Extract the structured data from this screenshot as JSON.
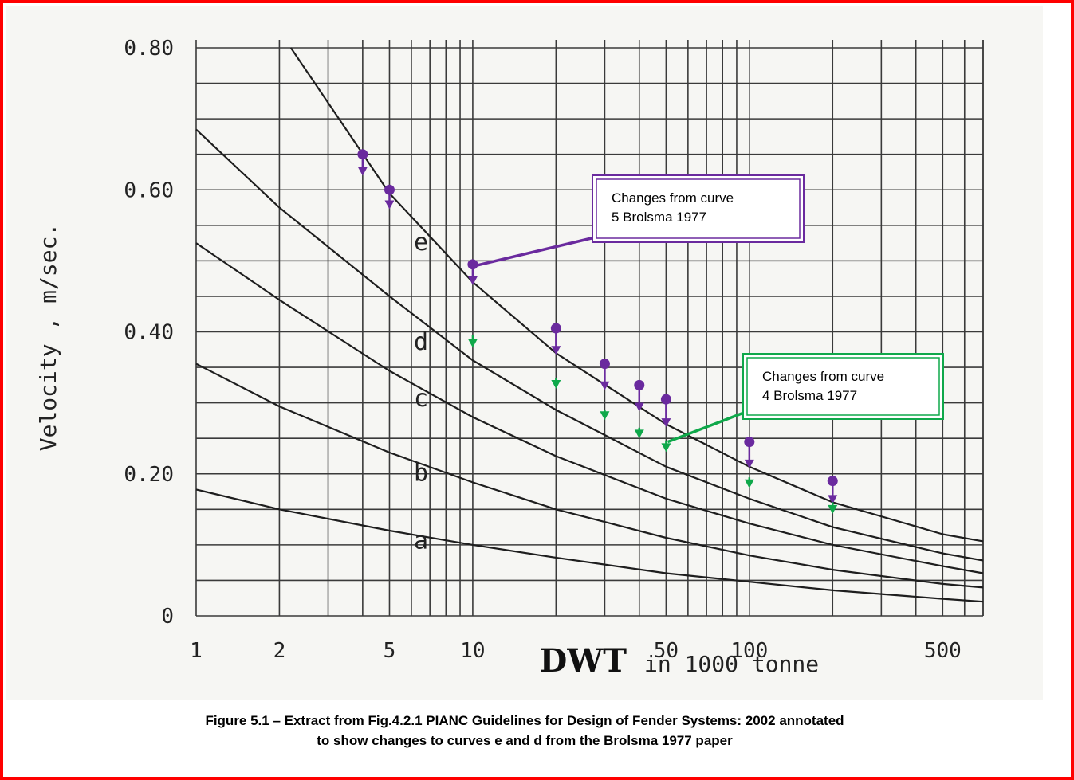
{
  "chart_data": {
    "type": "line",
    "x_scale": "log",
    "xlim": [
      1,
      700
    ],
    "ylim": [
      0,
      0.8
    ],
    "grid": true,
    "xticks": [
      "1",
      "2",
      "5",
      "10",
      "50",
      "100",
      "500"
    ],
    "yticks": [
      "0",
      "0.20",
      "0.40",
      "0.60",
      "0.80"
    ],
    "ylabel": "Velocity , m/sec.",
    "xlabel_bold": "DWT",
    "xlabel_rest": "in 1000 tonne",
    "series": [
      {
        "name": "a",
        "points": [
          [
            1,
            0.178
          ],
          [
            2,
            0.15
          ],
          [
            5,
            0.12
          ],
          [
            10,
            0.1
          ],
          [
            20,
            0.082
          ],
          [
            50,
            0.06
          ],
          [
            100,
            0.048
          ],
          [
            200,
            0.036
          ],
          [
            500,
            0.024
          ],
          [
            700,
            0.02
          ]
        ]
      },
      {
        "name": "b",
        "points": [
          [
            1,
            0.355
          ],
          [
            2,
            0.295
          ],
          [
            5,
            0.23
          ],
          [
            10,
            0.188
          ],
          [
            20,
            0.15
          ],
          [
            50,
            0.11
          ],
          [
            100,
            0.085
          ],
          [
            200,
            0.065
          ],
          [
            500,
            0.045
          ],
          [
            700,
            0.04
          ]
        ]
      },
      {
        "name": "c",
        "points": [
          [
            1,
            0.525
          ],
          [
            2,
            0.445
          ],
          [
            5,
            0.345
          ],
          [
            10,
            0.28
          ],
          [
            20,
            0.225
          ],
          [
            50,
            0.165
          ],
          [
            100,
            0.13
          ],
          [
            200,
            0.1
          ],
          [
            500,
            0.07
          ],
          [
            700,
            0.06
          ]
        ]
      },
      {
        "name": "d",
        "points": [
          [
            1,
            0.685
          ],
          [
            2,
            0.575
          ],
          [
            5,
            0.45
          ],
          [
            10,
            0.36
          ],
          [
            20,
            0.29
          ],
          [
            50,
            0.21
          ],
          [
            100,
            0.165
          ],
          [
            200,
            0.125
          ],
          [
            500,
            0.088
          ],
          [
            700,
            0.078
          ]
        ]
      },
      {
        "name": "e",
        "points": [
          [
            2.2,
            0.8
          ],
          [
            5,
            0.595
          ],
          [
            10,
            0.47
          ],
          [
            20,
            0.37
          ],
          [
            50,
            0.27
          ],
          [
            100,
            0.21
          ],
          [
            200,
            0.16
          ],
          [
            500,
            0.115
          ],
          [
            700,
            0.105
          ]
        ]
      }
    ],
    "annotations": [
      {
        "label": [
          "Changes from curve",
          "5 Brolsma 1977"
        ],
        "color": "#6a2a9e",
        "curve": "e",
        "arrows": [
          [
            4,
            0.65,
            0.622
          ],
          [
            5,
            0.6,
            0.575
          ],
          [
            10,
            0.495,
            0.468
          ],
          [
            20,
            0.405,
            0.37
          ],
          [
            30,
            0.355,
            0.32
          ],
          [
            40,
            0.325,
            0.29
          ],
          [
            50,
            0.305,
            0.268
          ],
          [
            100,
            0.245,
            0.21
          ],
          [
            200,
            0.19,
            0.16
          ]
        ]
      },
      {
        "label": [
          "Changes from curve",
          "4 Brolsma 1977"
        ],
        "color": "#0fa84a",
        "curve": "d",
        "arrows": [
          [
            10,
            0.395,
            0.38
          ],
          [
            20,
            0.335,
            0.322
          ],
          [
            30,
            0.29,
            0.278
          ],
          [
            40,
            0.265,
            0.252
          ],
          [
            50,
            0.247,
            0.233
          ],
          [
            100,
            0.195,
            0.182
          ],
          [
            200,
            0.16,
            0.146
          ]
        ]
      }
    ],
    "colors": {
      "purple": "#6a2a9e",
      "green": "#0fa84a",
      "border": "#ff0000"
    }
  },
  "caption": {
    "line1": "Figure 5.1 – Extract from Fig.4.2.1 PIANC Guidelines for Design of Fender Systems: 2002 annotated",
    "line2": "to show changes to curves e and d from the Brolsma 1977 paper"
  }
}
